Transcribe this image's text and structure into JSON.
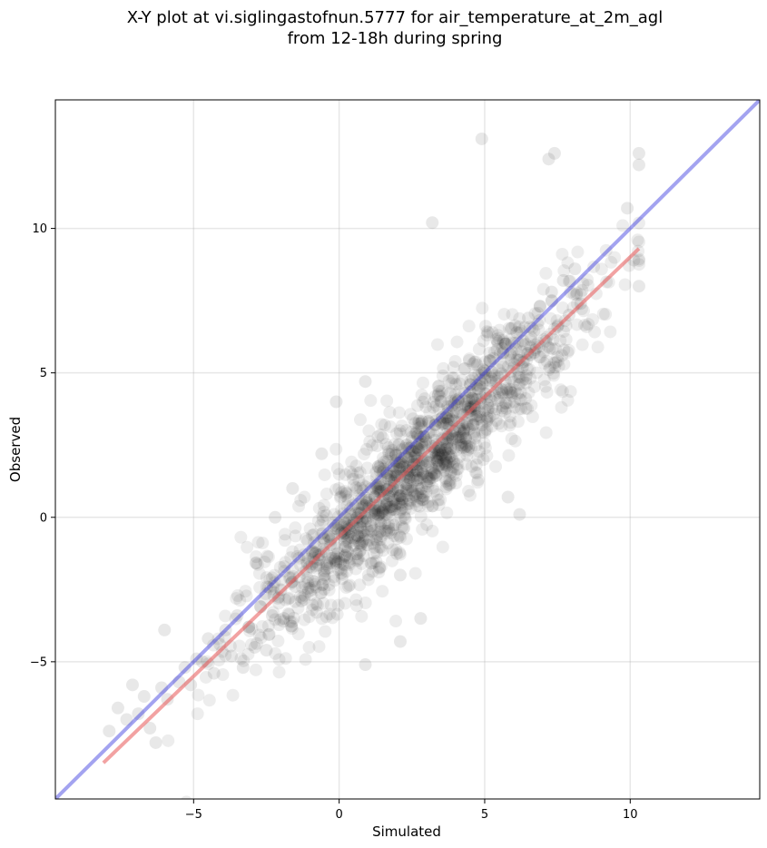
{
  "chart_data": {
    "type": "scatter",
    "title": "X-Y plot at vi.siglingastofnun.5777 for air_temperature_at_2m_agl",
    "subtitle": "from 12-18h during spring",
    "xlabel": "Simulated",
    "ylabel": "Observed",
    "xlim": [
      -9.75,
      14.45
    ],
    "ylim": [
      -9.75,
      14.45
    ],
    "xticks": [
      -5,
      0,
      5,
      10
    ],
    "yticks": [
      -5,
      0,
      5,
      10
    ],
    "xtick_labels": [
      "−5",
      "0",
      "5",
      "10"
    ],
    "ytick_labels": [
      "−5",
      "0",
      "5",
      "10"
    ],
    "grid": true,
    "colors": {
      "points": "#000000",
      "identity_line": "#3333dd",
      "fit_line": "#e85555"
    },
    "series": [
      {
        "type": "scatter",
        "note_opacity": 0.08,
        "points": [
          [
            -7.9,
            -7.4
          ],
          [
            -7.6,
            -6.6
          ],
          [
            -7.3,
            -7.0
          ],
          [
            -7.1,
            -5.8
          ],
          [
            -6.9,
            -6.8
          ],
          [
            -6.7,
            -6.2
          ],
          [
            -6.5,
            -7.3
          ],
          [
            -6.3,
            -7.8
          ],
          [
            -6.1,
            -5.9
          ],
          [
            -5.9,
            -6.3
          ],
          [
            -5.5,
            -5.7
          ],
          [
            -5.3,
            -5.2
          ],
          [
            -5.1,
            -5.8
          ],
          [
            -4.9,
            -4.9
          ],
          [
            -4.7,
            -5.0
          ],
          [
            -4.5,
            -4.2
          ],
          [
            -4.3,
            -5.4
          ],
          [
            -4.1,
            -4.4
          ],
          [
            -3.9,
            -3.9
          ],
          [
            -3.7,
            -4.8
          ],
          [
            -3.5,
            -3.4
          ],
          [
            -3.3,
            -5.2
          ],
          [
            -3.1,
            -3.8
          ],
          [
            -2.9,
            -4.5
          ],
          [
            -2.7,
            -3.1
          ],
          [
            -2.5,
            -4.6
          ],
          [
            -2.3,
            -3.4
          ],
          [
            -2.1,
            -2.8
          ],
          [
            -1.9,
            -3.5
          ],
          [
            -1.7,
            -2.1
          ],
          [
            -1.5,
            -2.4
          ],
          [
            -1.3,
            -2.9
          ],
          [
            -1.1,
            -1.6
          ],
          [
            -0.9,
            -2.2
          ],
          [
            -0.7,
            -1.3
          ],
          [
            -0.5,
            -2.0
          ],
          [
            -0.3,
            -0.8
          ],
          [
            -0.1,
            -1.6
          ],
          [
            0.1,
            -0.5
          ],
          [
            0.3,
            -1.2
          ],
          [
            0.5,
            -0.1
          ],
          [
            0.7,
            -0.9
          ],
          [
            0.9,
            0.4
          ],
          [
            1.1,
            -0.3
          ],
          [
            1.3,
            0.9
          ],
          [
            1.5,
            0.2
          ],
          [
            1.7,
            1.3
          ],
          [
            1.9,
            0.6
          ],
          [
            2.1,
            1.9
          ],
          [
            2.3,
            1.0
          ],
          [
            2.5,
            2.3
          ],
          [
            2.7,
            1.6
          ],
          [
            2.9,
            2.8
          ],
          [
            3.1,
            1.9
          ],
          [
            3.3,
            3.2
          ],
          [
            3.5,
            2.4
          ],
          [
            3.7,
            3.6
          ],
          [
            3.9,
            2.7
          ],
          [
            4.1,
            4.1
          ],
          [
            4.3,
            3.0
          ],
          [
            4.5,
            4.6
          ],
          [
            4.7,
            3.5
          ],
          [
            4.9,
            5.0
          ],
          [
            5.1,
            3.9
          ],
          [
            5.3,
            5.5
          ],
          [
            5.5,
            4.3
          ],
          [
            5.7,
            6.0
          ],
          [
            5.9,
            4.8
          ],
          [
            6.1,
            6.4
          ],
          [
            6.3,
            5.2
          ],
          [
            6.5,
            6.9
          ],
          [
            6.7,
            5.7
          ],
          [
            6.9,
            7.3
          ],
          [
            7.1,
            6.1
          ],
          [
            7.3,
            7.8
          ],
          [
            7.5,
            6.6
          ],
          [
            7.7,
            8.2
          ],
          [
            7.9,
            7.0
          ],
          [
            8.1,
            8.6
          ],
          [
            8.3,
            7.4
          ],
          [
            4.9,
            13.1
          ],
          [
            7.4,
            12.6
          ],
          [
            10.3,
            12.6
          ],
          [
            10.3,
            12.2
          ],
          [
            7.2,
            12.4
          ],
          [
            3.2,
            10.2
          ],
          [
            9.9,
            10.7
          ],
          [
            10.3,
            8.0
          ],
          [
            -6.0,
            -3.9
          ],
          [
            0.9,
            -5.1
          ],
          [
            2.8,
            -3.5
          ],
          [
            2.1,
            -4.3
          ],
          [
            6.2,
            0.1
          ],
          [
            5.8,
            0.7
          ],
          [
            -0.1,
            4.0
          ],
          [
            0.9,
            4.7
          ],
          [
            -1.6,
            1.0
          ],
          [
            -2.2,
            0.0
          ],
          [
            -0.6,
            2.2
          ],
          [
            2.1,
            -2.0
          ]
        ]
      },
      {
        "type": "line",
        "name_hidden": "identity",
        "x": [
          -9.75,
          14.45
        ],
        "y": [
          -9.75,
          14.45
        ]
      },
      {
        "type": "line",
        "name_hidden": "fit",
        "x": [
          -8.1,
          10.3
        ],
        "y": [
          -8.5,
          9.3
        ]
      }
    ]
  }
}
